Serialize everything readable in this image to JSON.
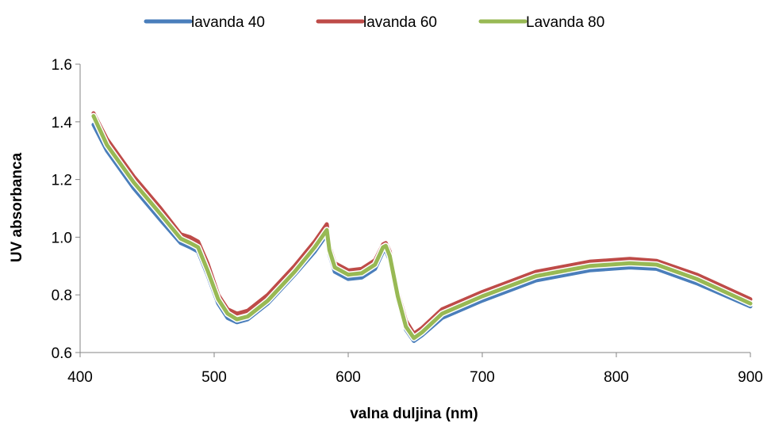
{
  "chart_data": {
    "type": "line",
    "xlabel": "valna duljina (nm)",
    "ylabel": "UV absorbanca",
    "xlim": [
      400,
      900
    ],
    "ylim": [
      0.6,
      1.6
    ],
    "xticks": [
      400,
      500,
      600,
      700,
      800,
      900
    ],
    "yticks": [
      0.6,
      0.8,
      1.0,
      1.2,
      1.4,
      1.6
    ],
    "ytick_labels": [
      "0.6",
      "0.8",
      "1.0",
      "1.2",
      "1.4",
      "1.6"
    ],
    "legend_position": "top",
    "grid": false,
    "series": [
      {
        "name": "lavanda 40",
        "color": "#4a7ebb",
        "x": [
          410,
          420,
          440,
          460,
          475,
          482,
          488,
          495,
          503,
          510,
          517,
          525,
          540,
          560,
          575,
          584,
          586,
          590,
          600,
          610,
          620,
          626,
          628,
          631,
          637,
          643,
          649,
          655,
          670,
          700,
          740,
          780,
          810,
          830,
          860,
          900
        ],
        "y": [
          1.39,
          1.3,
          1.17,
          1.06,
          0.98,
          0.965,
          0.95,
          0.87,
          0.77,
          0.72,
          0.705,
          0.715,
          0.77,
          0.87,
          0.95,
          1.01,
          0.94,
          0.88,
          0.855,
          0.86,
          0.89,
          0.95,
          0.955,
          0.92,
          0.78,
          0.68,
          0.64,
          0.66,
          0.72,
          0.78,
          0.85,
          0.885,
          0.895,
          0.89,
          0.84,
          0.76
        ]
      },
      {
        "name": "lavanda 60",
        "color": "#be4b48",
        "x": [
          410,
          420,
          440,
          460,
          475,
          482,
          488,
          495,
          503,
          510,
          517,
          525,
          540,
          560,
          575,
          584,
          586,
          590,
          600,
          610,
          620,
          626,
          628,
          631,
          637,
          643,
          649,
          655,
          670,
          700,
          740,
          780,
          810,
          830,
          860,
          900
        ],
        "y": [
          1.43,
          1.34,
          1.21,
          1.1,
          1.01,
          1.0,
          0.985,
          0.91,
          0.8,
          0.75,
          0.735,
          0.745,
          0.8,
          0.9,
          0.985,
          1.045,
          0.97,
          0.91,
          0.885,
          0.89,
          0.92,
          0.975,
          0.98,
          0.95,
          0.81,
          0.71,
          0.665,
          0.685,
          0.75,
          0.81,
          0.88,
          0.915,
          0.925,
          0.918,
          0.87,
          0.785
        ]
      },
      {
        "name": "Lavanda 80",
        "color": "#98b954",
        "x": [
          410,
          420,
          440,
          460,
          475,
          482,
          488,
          495,
          503,
          510,
          517,
          525,
          540,
          560,
          575,
          584,
          586,
          590,
          600,
          610,
          620,
          626,
          628,
          631,
          637,
          643,
          649,
          655,
          670,
          700,
          740,
          780,
          810,
          830,
          860,
          900
        ],
        "y": [
          1.42,
          1.32,
          1.19,
          1.08,
          0.995,
          0.98,
          0.965,
          0.885,
          0.785,
          0.735,
          0.715,
          0.725,
          0.78,
          0.88,
          0.965,
          1.025,
          0.955,
          0.895,
          0.87,
          0.875,
          0.905,
          0.965,
          0.97,
          0.935,
          0.795,
          0.69,
          0.65,
          0.67,
          0.735,
          0.795,
          0.865,
          0.9,
          0.91,
          0.905,
          0.855,
          0.77
        ]
      }
    ]
  }
}
